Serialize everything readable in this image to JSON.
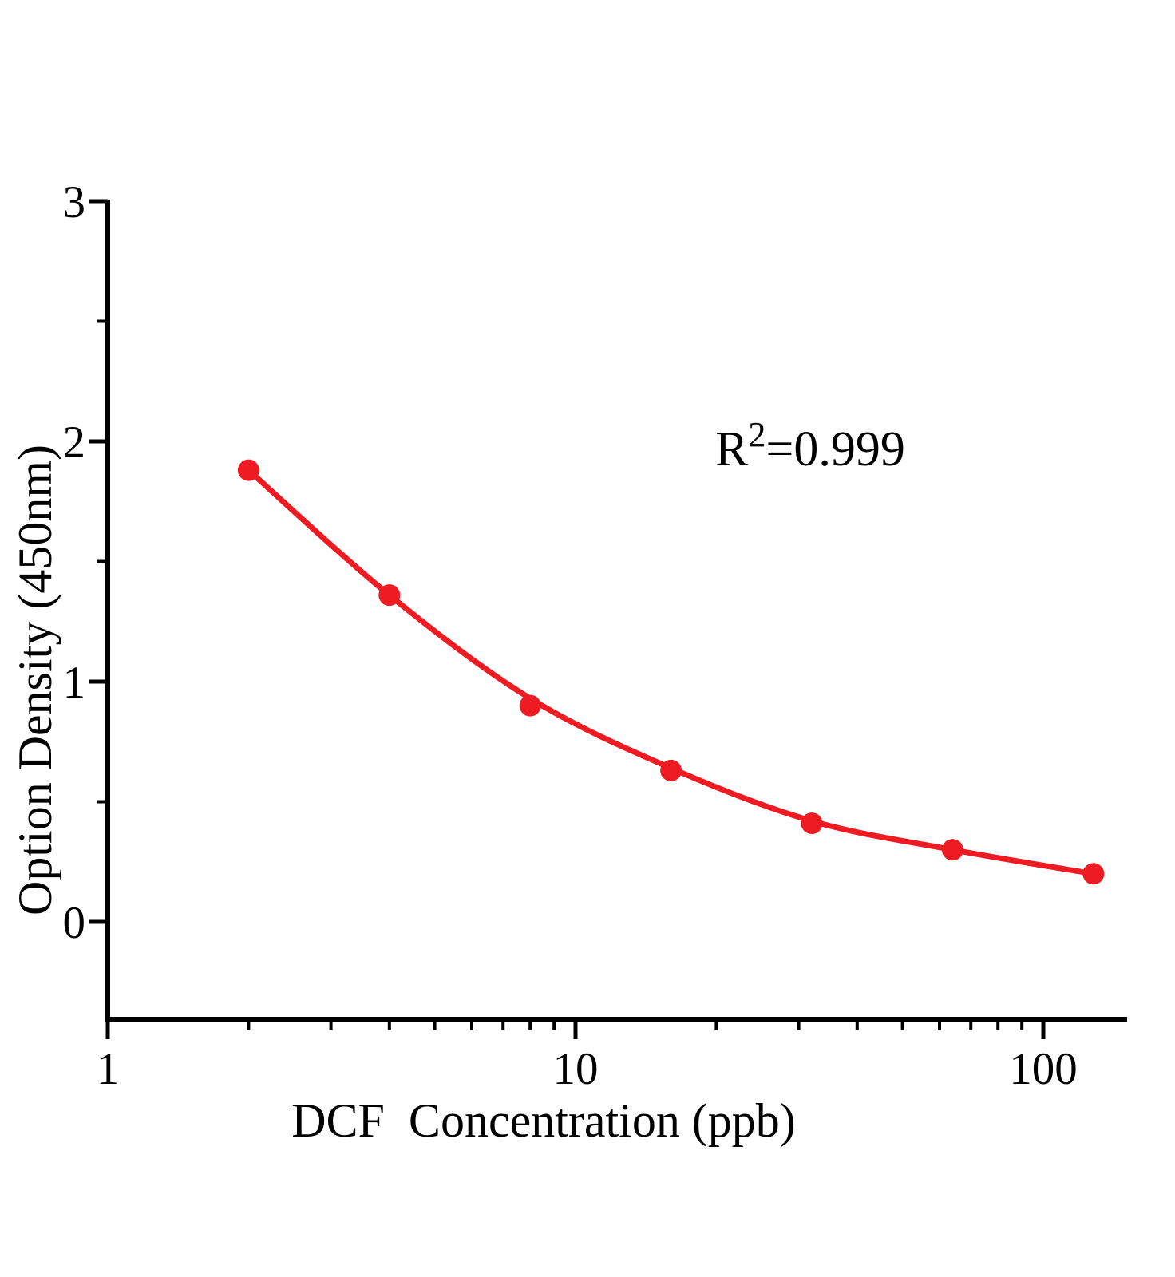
{
  "chart_data": {
    "type": "scatter",
    "title": "",
    "xlabel": "DCF  Concentration (ppb)",
    "ylabel": "Option Density (450nm)",
    "x_scale": "log",
    "x": [
      2,
      4,
      8,
      16,
      32,
      64,
      128
    ],
    "od": [
      1.88,
      1.36,
      0.9,
      0.63,
      0.41,
      0.3,
      0.2
    ],
    "curve_od": [
      1.88,
      1.36,
      0.93,
      0.64,
      0.42,
      0.3,
      0.2
    ],
    "xlim": [
      1,
      150
    ],
    "ylim": [
      -0.4,
      3
    ],
    "x_major_ticks": [
      1,
      10,
      100
    ],
    "x_minor_ticks": [
      2,
      3,
      4,
      5,
      6,
      7,
      8,
      9,
      20,
      30,
      40,
      50,
      60,
      70,
      80,
      90
    ],
    "y_major_ticks": [
      0,
      1,
      2,
      3
    ],
    "y_minor_ticks": [
      0.5,
      1.5,
      2.5
    ],
    "annotation": {
      "base": "R",
      "exponent": "2",
      "rest": "=0.999"
    },
    "grid": false,
    "legend": null,
    "colors": {
      "series": "#ee1c22",
      "axis": "#000000",
      "text": "#000000"
    }
  }
}
